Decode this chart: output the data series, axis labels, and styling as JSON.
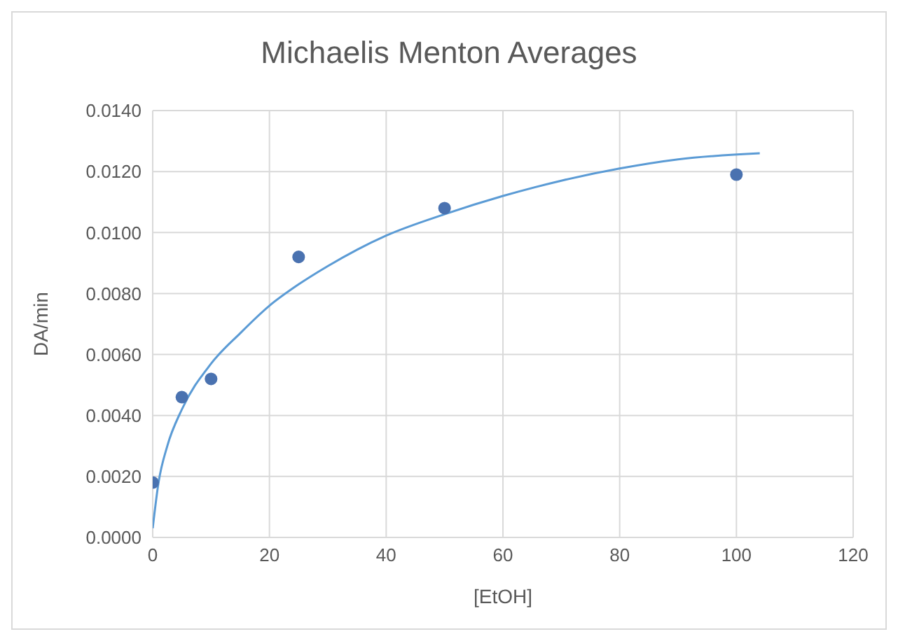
{
  "chart_data": {
    "type": "scatter",
    "title": "Michaelis Menton Averages",
    "xlabel": "[EtOH]",
    "ylabel": "DA/min",
    "xlim": [
      0,
      120
    ],
    "xticks": [
      0,
      20,
      40,
      60,
      80,
      100,
      120
    ],
    "ylim": [
      0,
      0.014
    ],
    "yticks": [
      {
        "value": 0,
        "label": "0.0000"
      },
      {
        "value": 0.002,
        "label": "0.0020"
      },
      {
        "value": 0.004,
        "label": "0.0040"
      },
      {
        "value": 0.006,
        "label": "0.0060"
      },
      {
        "value": 0.008,
        "label": "0.0080"
      },
      {
        "value": 0.01,
        "label": "0.0100"
      },
      {
        "value": 0.012,
        "label": "0.0120"
      },
      {
        "value": 0.014,
        "label": "0.0140"
      }
    ],
    "grid": true,
    "legend": false,
    "series": [
      {
        "color": "#4a72b0",
        "marker": "circle",
        "x": [
          0,
          5,
          10,
          25,
          50,
          100
        ],
        "values": [
          0.0018,
          0.0046,
          0.0052,
          0.0092,
          0.0108,
          0.0119
        ]
      },
      {
        "type": "line",
        "color": "#5b9bd5",
        "marker": "none",
        "line_style": "solid",
        "x": [
          0,
          1,
          2.5,
          5,
          10,
          15,
          20,
          25,
          30,
          40,
          50,
          60,
          70,
          80,
          90,
          104
        ],
        "values": [
          0.0003,
          0.0018,
          0.003,
          0.0042,
          0.0057,
          0.0067,
          0.0076,
          0.0083,
          0.0089,
          0.0099,
          0.0106,
          0.0112,
          0.0117,
          0.0121,
          0.0124,
          0.0126
        ]
      }
    ]
  }
}
